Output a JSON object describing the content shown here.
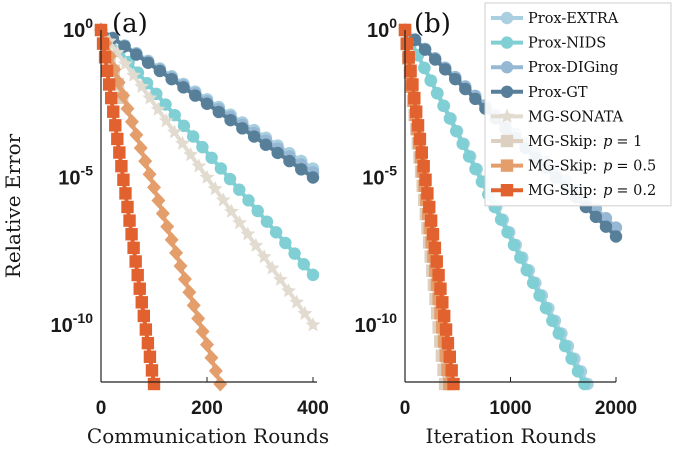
{
  "chart_data": [
    {
      "type": "line",
      "panel_label": "(a)",
      "xlabel": "Communication Rounds",
      "ylabel": "Relative Error",
      "xlim": [
        0,
        400
      ],
      "ylim": [
        1e-12,
        1
      ],
      "yscale": "log",
      "xticks": [
        "0",
        "200",
        "400"
      ],
      "yticks": [
        {
          "base": "10",
          "exp": "0"
        },
        {
          "base": "10",
          "exp": "-5"
        },
        {
          "base": "10",
          "exp": "-10"
        }
      ],
      "series": [
        {
          "name": "Prox-EXTRA",
          "marker": "circle",
          "color": "#a9cfe0",
          "x": [
            0,
            400
          ],
          "y": [
            1,
            2e-05
          ]
        },
        {
          "name": "Prox-NIDS",
          "marker": "circle",
          "color": "#7fcfd4",
          "x": [
            0,
            400
          ],
          "y": [
            1,
            5e-09
          ]
        },
        {
          "name": "Prox-DIGing",
          "marker": "circle",
          "color": "#96b8d4",
          "x": [
            0,
            400
          ],
          "y": [
            1,
            1.5e-05
          ]
        },
        {
          "name": "Prox-GT",
          "marker": "circle",
          "color": "#587f99",
          "x": [
            0,
            400
          ],
          "y": [
            1,
            1e-05
          ]
        },
        {
          "name": "MG-SONATA",
          "marker": "star",
          "color": "#e2dbd0",
          "x": [
            0,
            400
          ],
          "y": [
            1,
            1e-10
          ]
        },
        {
          "name": "MG-Skip: p = 1",
          "marker": "square",
          "color": "#ddd0c0",
          "x": [
            0,
            40
          ],
          "y": [
            1,
            0.005
          ]
        },
        {
          "name": "MG-Skip: p = 0.5",
          "marker": "diamond",
          "color": "#e39e6c",
          "x": [
            0,
            225
          ],
          "y": [
            1,
            1e-12
          ]
        },
        {
          "name": "MG-Skip: p = 0.2",
          "marker": "square",
          "color": "#e2622f",
          "x": [
            0,
            100
          ],
          "y": [
            1,
            1e-12
          ]
        }
      ]
    },
    {
      "type": "line",
      "panel_label": "(b)",
      "xlabel": "Iteration Rounds",
      "ylabel": "",
      "xlim": [
        0,
        2000
      ],
      "ylim": [
        1e-12,
        1
      ],
      "yscale": "log",
      "xticks": [
        "0",
        "1000",
        "2000"
      ],
      "yticks": [
        {
          "base": "10",
          "exp": "0"
        },
        {
          "base": "10",
          "exp": "-5"
        },
        {
          "base": "10",
          "exp": "-10"
        }
      ],
      "series": [
        {
          "name": "Prox-EXTRA",
          "marker": "circle",
          "color": "#a9cfe0",
          "x": [
            0,
            1730
          ],
          "y": [
            1,
            1e-12
          ]
        },
        {
          "name": "Prox-NIDS",
          "marker": "circle",
          "color": "#7fcfd4",
          "x": [
            0,
            1700
          ],
          "y": [
            1,
            1e-12
          ]
        },
        {
          "name": "Prox-DIGing",
          "marker": "circle",
          "color": "#96b8d4",
          "x": [
            0,
            2000
          ],
          "y": [
            1,
            2e-07
          ]
        },
        {
          "name": "Prox-GT",
          "marker": "circle",
          "color": "#587f99",
          "x": [
            0,
            2000
          ],
          "y": [
            1,
            1e-07
          ]
        },
        {
          "name": "MG-SONATA",
          "marker": "star",
          "color": "#e2dbd0",
          "x": [
            0,
            400
          ],
          "y": [
            1,
            1e-12
          ]
        },
        {
          "name": "MG-Skip: p = 1",
          "marker": "square",
          "color": "#ddd0c0",
          "x": [
            0,
            380
          ],
          "y": [
            1,
            1e-12
          ]
        },
        {
          "name": "MG-Skip: p = 0.5",
          "marker": "square",
          "color": "#e39e6c",
          "x": [
            0,
            420
          ],
          "y": [
            1,
            1e-12
          ]
        },
        {
          "name": "MG-Skip: p = 0.2",
          "marker": "square",
          "color": "#e2622f",
          "x": [
            0,
            460
          ],
          "y": [
            1,
            1e-12
          ]
        }
      ],
      "legend": {
        "placement": "top-right",
        "entries": [
          {
            "prefix": "Prox-EXTRA",
            "math": ""
          },
          {
            "prefix": "Prox-NIDS",
            "math": ""
          },
          {
            "prefix": "Prox-DIGing",
            "math": ""
          },
          {
            "prefix": "Prox-GT",
            "math": ""
          },
          {
            "prefix": "MG-SONATA",
            "math": ""
          },
          {
            "prefix": "MG-Skip:",
            "math": "p = 1"
          },
          {
            "prefix": "MG-Skip:",
            "math": "p = 0.5"
          },
          {
            "prefix": "MG-Skip:",
            "math": "p = 0.2"
          }
        ]
      }
    }
  ]
}
